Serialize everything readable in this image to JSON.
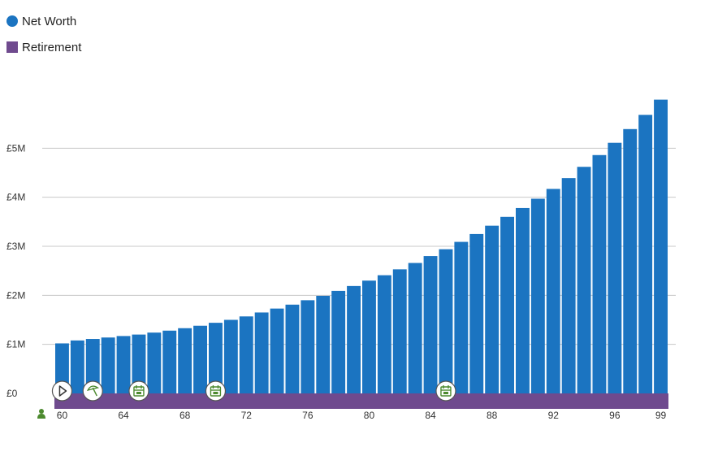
{
  "legend": [
    {
      "label": "Net Worth",
      "color": "#1b74c1",
      "shape": "circle"
    },
    {
      "label": "Retirement",
      "color": "#6f4a8e",
      "shape": "square"
    }
  ],
  "chart_data": {
    "type": "bar",
    "title": "",
    "xlabel": "",
    "ylabel": "",
    "ylim": [
      0,
      6000000
    ],
    "yticks": [
      {
        "value": 0,
        "label": "£0"
      },
      {
        "value": 1000000,
        "label": "£1M"
      },
      {
        "value": 2000000,
        "label": "£2M"
      },
      {
        "value": 3000000,
        "label": "£3M"
      },
      {
        "value": 4000000,
        "label": "£4M"
      },
      {
        "value": 5000000,
        "label": "£5M"
      }
    ],
    "xticks": [
      "60",
      "64",
      "68",
      "72",
      "76",
      "80",
      "84",
      "88",
      "92",
      "96",
      "99"
    ],
    "categories": [
      60,
      61,
      62,
      63,
      64,
      65,
      66,
      67,
      68,
      69,
      70,
      71,
      72,
      73,
      74,
      75,
      76,
      77,
      78,
      79,
      80,
      81,
      82,
      83,
      84,
      85,
      86,
      87,
      88,
      89,
      90,
      91,
      92,
      93,
      94,
      95,
      96,
      97,
      98,
      99
    ],
    "series": [
      {
        "name": "Net Worth",
        "color": "#1b74c1",
        "values": [
          1020000,
          1080000,
          1110000,
          1140000,
          1170000,
          1200000,
          1240000,
          1280000,
          1330000,
          1380000,
          1440000,
          1500000,
          1570000,
          1650000,
          1730000,
          1810000,
          1900000,
          1990000,
          2090000,
          2190000,
          2300000,
          2410000,
          2530000,
          2660000,
          2800000,
          2940000,
          3090000,
          3250000,
          3420000,
          3600000,
          3780000,
          3970000,
          4170000,
          4390000,
          4620000,
          4860000,
          5110000,
          5390000,
          5680000,
          5990000
        ]
      },
      {
        "name": "Retirement",
        "color": "#6f4a8e",
        "range": [
          60,
          99
        ]
      }
    ],
    "grid": true,
    "legend_position": "top-left"
  },
  "event_markers": [
    {
      "age": 60,
      "icon": "play-icon"
    },
    {
      "age": 62,
      "icon": "beach-umbrella-icon"
    },
    {
      "age": 65,
      "icon": "calendar-icon"
    },
    {
      "age": 70,
      "icon": "calendar-icon"
    },
    {
      "age": 85,
      "icon": "calendar-icon"
    }
  ],
  "person_icon": "person-icon",
  "colors": {
    "grid": "#c8c8c8",
    "marker_border": "#555555",
    "marker_icon": "#4c8a2e"
  }
}
